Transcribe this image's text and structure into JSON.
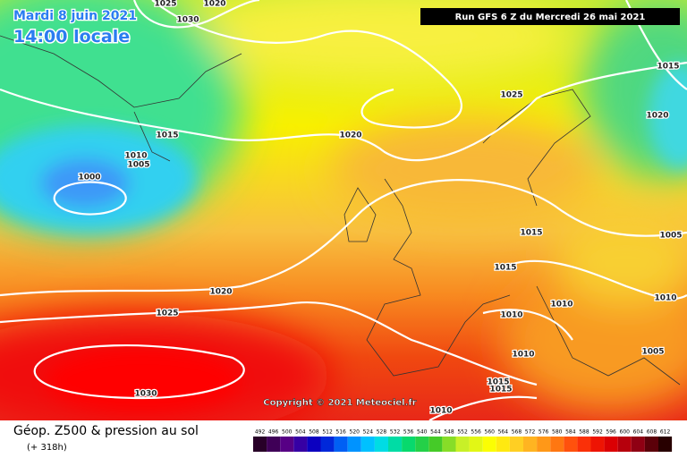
{
  "header": {
    "date": "Mardi 8 juin 2021",
    "time": "14:00 locale",
    "run": "Run GFS 6 Z du Mercredi 26 mai 2021"
  },
  "copyright": "Copyright © 2021 Meteociel.fr",
  "isobar_labels": [
    1025,
    1020,
    1030,
    1015,
    1025,
    1020,
    1015,
    1020,
    1010,
    1005,
    1000,
    1015,
    1005,
    1015,
    1020,
    1010,
    1010,
    1025,
    1010,
    1010,
    1005,
    1015,
    1015,
    1030,
    1010
  ],
  "footer": {
    "title": "Géop. Z500 & pression au sol",
    "lead": "(+ 318h)"
  },
  "legend": {
    "labels": [
      492,
      496,
      500,
      504,
      508,
      512,
      516,
      520,
      524,
      528,
      532,
      536,
      540,
      544,
      548,
      552,
      556,
      560,
      564,
      568,
      572,
      576,
      580,
      584,
      588,
      592,
      596,
      600,
      604,
      608,
      612
    ]
  }
}
